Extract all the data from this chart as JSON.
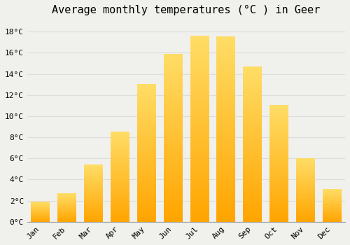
{
  "title": "Average monthly temperatures (°C ) in Geer",
  "months": [
    "Jan",
    "Feb",
    "Mar",
    "Apr",
    "May",
    "Jun",
    "Jul",
    "Aug",
    "Sep",
    "Oct",
    "Nov",
    "Dec"
  ],
  "temperatures": [
    1.9,
    2.7,
    5.4,
    8.5,
    13.0,
    15.9,
    17.6,
    17.5,
    14.7,
    11.0,
    6.0,
    3.1
  ],
  "bar_color_top": "#FFB300",
  "bar_color_bottom": "#FFD966",
  "background_color": "#F0F0EC",
  "grid_color": "#DDDDDD",
  "ylim": [
    0,
    19
  ],
  "yticks": [
    0,
    2,
    4,
    6,
    8,
    10,
    12,
    14,
    16,
    18
  ],
  "title_fontsize": 11,
  "tick_fontsize": 8,
  "font_family": "monospace"
}
